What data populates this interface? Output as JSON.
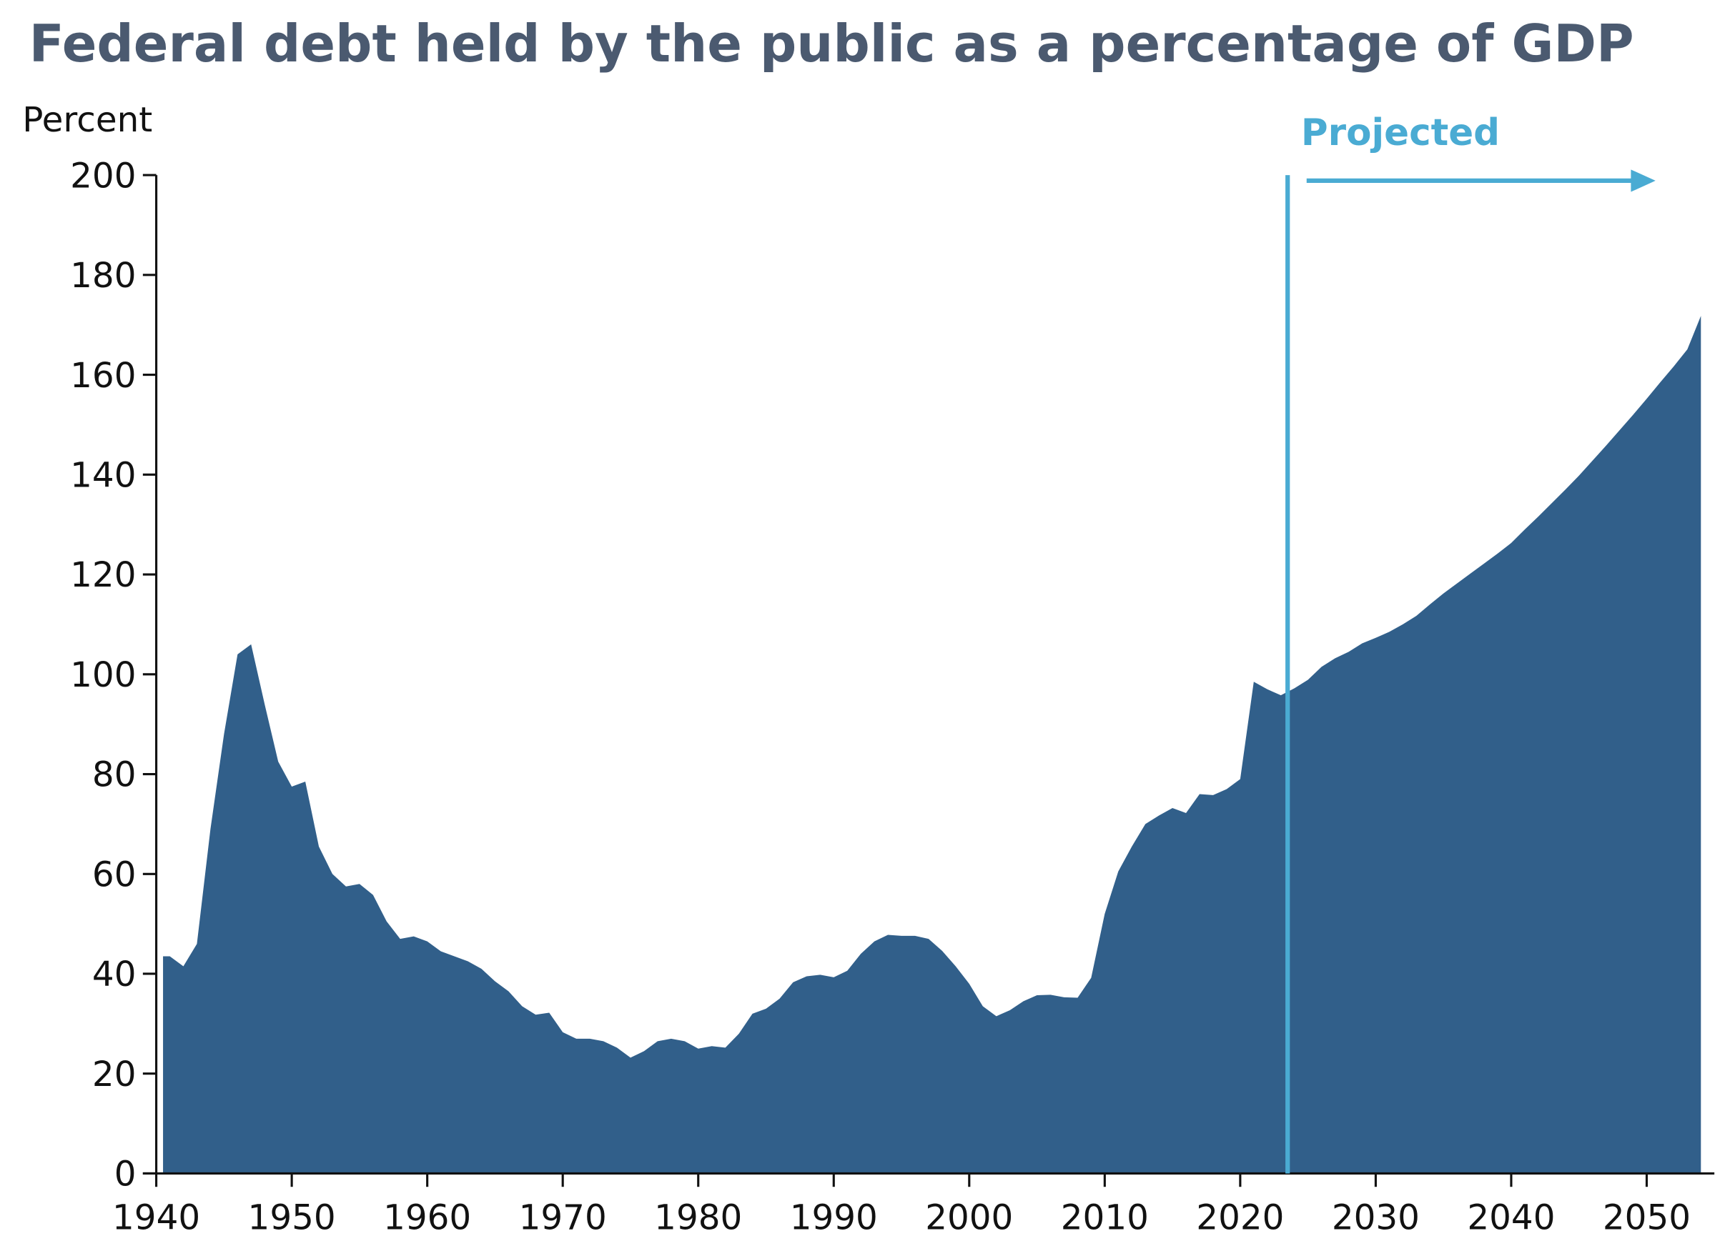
{
  "chart_data": {
    "type": "area",
    "title": "Federal debt held by the public as a percentage of GDP",
    "ylabel": "Percent",
    "xlabel": "",
    "xlim": [
      1940,
      2054.5
    ],
    "ylim": [
      0,
      200
    ],
    "yticks": [
      0,
      20,
      40,
      60,
      80,
      100,
      120,
      140,
      160,
      180,
      200
    ],
    "xticks": [
      1940,
      1950,
      1960,
      1970,
      1980,
      1990,
      2000,
      2010,
      2020,
      2030,
      2040,
      2050
    ],
    "grid": false,
    "annotation": {
      "label": "Projected",
      "start_year": 2023.5
    },
    "colors": {
      "fill": "#315f8a",
      "projected": "#4aabd3",
      "title": "#4b5a70",
      "axis": "#111111"
    },
    "x": [
      1941,
      1942,
      1943,
      1944,
      1945,
      1946,
      1947,
      1948,
      1949,
      1950,
      1951,
      1952,
      1953,
      1954,
      1955,
      1956,
      1957,
      1958,
      1959,
      1960,
      1961,
      1962,
      1963,
      1964,
      1965,
      1966,
      1967,
      1968,
      1969,
      1970,
      1971,
      1972,
      1973,
      1974,
      1975,
      1976,
      1977,
      1978,
      1979,
      1980,
      1981,
      1982,
      1983,
      1984,
      1985,
      1986,
      1987,
      1988,
      1989,
      1990,
      1991,
      1992,
      1993,
      1994,
      1995,
      1996,
      1997,
      1998,
      1999,
      2000,
      2001,
      2002,
      2003,
      2004,
      2005,
      2006,
      2007,
      2008,
      2009,
      2010,
      2011,
      2012,
      2013,
      2014,
      2015,
      2016,
      2017,
      2018,
      2019,
      2020,
      2021,
      2022,
      2023,
      2024,
      2025,
      2026,
      2027,
      2028,
      2029,
      2030,
      2031,
      2032,
      2033,
      2034,
      2035,
      2036,
      2037,
      2038,
      2039,
      2040,
      2041,
      2042,
      2043,
      2044,
      2045,
      2046,
      2047,
      2048,
      2049,
      2050,
      2051,
      2052,
      2053,
      2054
    ],
    "values": [
      43.5,
      41.5,
      46,
      69,
      88,
      104,
      106,
      94,
      82.5,
      77.5,
      78.5,
      65.5,
      60,
      57.5,
      58,
      55.8,
      50.5,
      47,
      47.5,
      46.5,
      44.5,
      43.5,
      42.5,
      41,
      38.5,
      36.5,
      33.5,
      31.8,
      32.2,
      28.3,
      27,
      27,
      26.5,
      25.2,
      23.2,
      24.5,
      26.5,
      27,
      26.5,
      25,
      25.5,
      25.2,
      28,
      32,
      33,
      35,
      38.3,
      39.5,
      39.8,
      39.3,
      40.6,
      44,
      46.5,
      47.8,
      47.6,
      47.6,
      47,
      44.6,
      41.5,
      38,
      33.5,
      31.5,
      32.7,
      34.5,
      35.7,
      35.8,
      35.3,
      35.2,
      39.2,
      52,
      60.5,
      65.5,
      70,
      71.7,
      73.2,
      72.2,
      76,
      75.8,
      77,
      79,
      98.5,
      97,
      95.8,
      97.2,
      98.9,
      101.5,
      103.2,
      104.5,
      106.2,
      107.3,
      108.5,
      110,
      111.7,
      114,
      116.2,
      118.2,
      120.2,
      122.2,
      124.2,
      126.3,
      129,
      131.6,
      134.3,
      137,
      139.8,
      142.8,
      145.8,
      148.9,
      152,
      155.2,
      158.5,
      161.7,
      165.1,
      171.8
    ]
  }
}
